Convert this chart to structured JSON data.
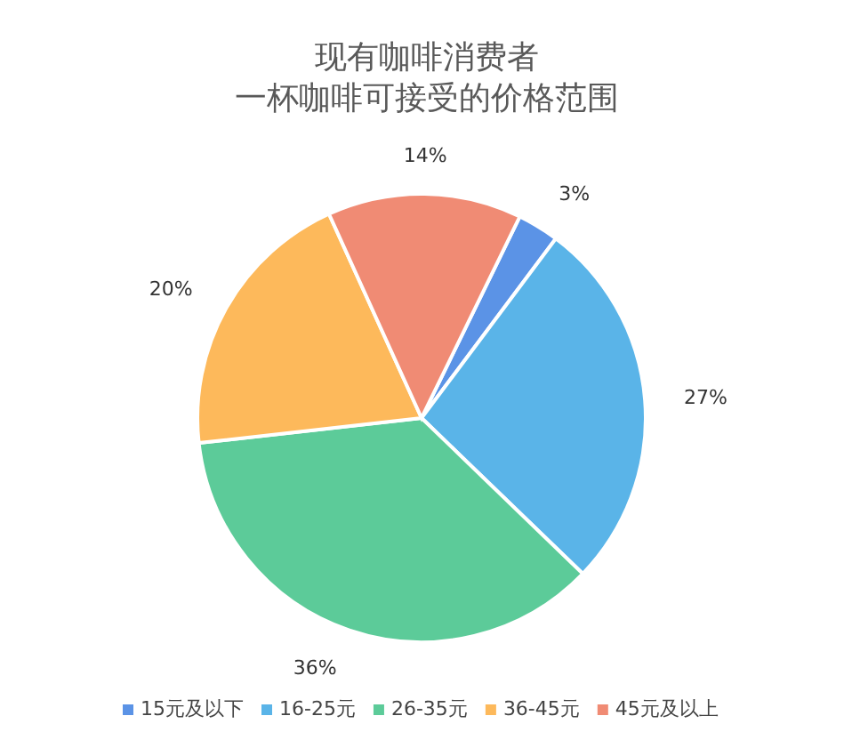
{
  "chart_data": {
    "type": "pie",
    "title": "现有咖啡消费者",
    "subtitle": "一杯咖啡可接受的价格范围",
    "categories": [
      "15元及以下",
      "16-25元",
      "26-35元",
      "36-45元",
      "45元及以上"
    ],
    "values": [
      3,
      27,
      36,
      20,
      14
    ],
    "colors": [
      "#5b93e6",
      "#5ab4e8",
      "#5ccb99",
      "#fdb95b",
      "#f08b74"
    ],
    "value_labels": [
      "3%",
      "27%",
      "36%",
      "20%",
      "14%"
    ],
    "legend": "bottom"
  }
}
